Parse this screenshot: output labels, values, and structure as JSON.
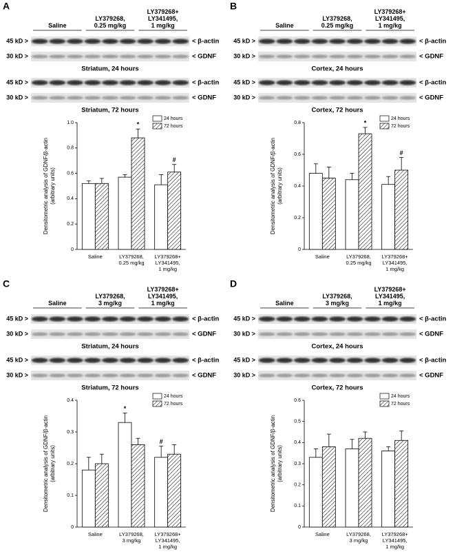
{
  "panels": [
    {
      "label": "A",
      "groups": [
        "Saline",
        "LY379268,\n0.25 mg/kg",
        "LY379268+\nLY341495,\n1 mg/kg"
      ],
      "blots": [
        {
          "caption": "Striatum, 24 hours",
          "rows": [
            {
              "marker": "45 kD >",
              "band": "< β-actin"
            },
            {
              "marker": "30 kD >",
              "band": "< GDNF"
            }
          ]
        },
        {
          "caption": "Striatum, 72 hours",
          "rows": [
            {
              "marker": "45 kD >",
              "band": "< β-actin"
            },
            {
              "marker": "30 kD >",
              "band": "< GDNF"
            }
          ]
        }
      ]
    },
    {
      "label": "B",
      "groups": [
        "Saline",
        "LY379268,\n0.25 mg/kg",
        "LY379268+\nLY341495,\n1 mg/kg"
      ],
      "blots": [
        {
          "caption": "Cortex, 24 hours",
          "rows": [
            {
              "marker": "45 kD >",
              "band": "< β-actin"
            },
            {
              "marker": "30 kD >",
              "band": "< GDNF"
            }
          ]
        },
        {
          "caption": "Cortex, 72 hours",
          "rows": [
            {
              "marker": "45 kD >",
              "band": "< β-actin"
            },
            {
              "marker": "30 kD >",
              "band": "< GDNF"
            }
          ]
        }
      ]
    },
    {
      "label": "C",
      "groups": [
        "Saline",
        "LY379268,\n3 mg/kg",
        "LY379268+\nLY341495,\n1 mg/kg"
      ],
      "blots": [
        {
          "caption": "Striatum, 24 hours",
          "rows": [
            {
              "marker": "45 kD >",
              "band": "< β-actin"
            },
            {
              "marker": "30 kD >",
              "band": "< GDNF"
            }
          ]
        },
        {
          "caption": "Striatum, 72 hours",
          "rows": [
            {
              "marker": "45 kD >",
              "band": "< β-actin"
            },
            {
              "marker": "30 kD >",
              "band": "< GDNF"
            }
          ]
        }
      ]
    },
    {
      "label": "D",
      "groups": [
        "Saline",
        "LY379268,\n3 mg/kg",
        "LY379268+\nLY341495,\n1 mg/kg"
      ],
      "blots": [
        {
          "caption": "Cortex, 24 hours",
          "rows": [
            {
              "marker": "45 kD >",
              "band": "< β-actin"
            },
            {
              "marker": "30 kD >",
              "band": "< GDNF"
            }
          ]
        },
        {
          "caption": "Cortex, 72 hours",
          "rows": [
            {
              "marker": "45 kD >",
              "band": "< β-actin"
            },
            {
              "marker": "30 kD >",
              "band": "< GDNF"
            }
          ]
        }
      ]
    }
  ],
  "chart_data": [
    {
      "type": "bar",
      "ylabel": "Densitometric analysis of GDNF/β-actin\n(arbitrary units)",
      "categories": [
        "Saline",
        "LY379268,\n0.25 mg/kg",
        "LY379268+\nLY341495,\n1 mg/kg"
      ],
      "series": [
        {
          "name": "24 hours",
          "color": "#ffffff",
          "values": [
            0.52,
            0.57,
            0.51
          ],
          "errors": [
            0.02,
            0.02,
            0.08
          ]
        },
        {
          "name": "72 hours",
          "color": "#000000",
          "hatch": true,
          "values": [
            0.52,
            0.88,
            0.61
          ],
          "errors": [
            0.04,
            0.07,
            0.06
          ]
        }
      ],
      "ylim": [
        0,
        1
      ],
      "yticks": [
        0,
        0.2,
        0.4,
        0.6,
        0.8,
        {
          "value": 1,
          "label": "1.0"
        }
      ],
      "annotations": [
        {
          "text": "*",
          "series": 1,
          "category": 1
        },
        {
          "text": "#",
          "series": 1,
          "category": 2
        }
      ]
    },
    {
      "type": "bar",
      "ylabel": "Densitometric analysis of GDNF/β-actin\n(arbitrary units)",
      "categories": [
        "Saline",
        "LY379268,\n0.25 mg/kg",
        "LY379268+\nLY341495,\n1 mg/kg"
      ],
      "series": [
        {
          "name": "24 hours",
          "color": "#ffffff",
          "values": [
            0.48,
            0.44,
            0.41
          ],
          "errors": [
            0.06,
            0.04,
            0.05
          ]
        },
        {
          "name": "72 hours",
          "color": "#000000",
          "hatch": true,
          "values": [
            0.45,
            0.73,
            0.5
          ],
          "errors": [
            0.07,
            0.04,
            0.08
          ]
        }
      ],
      "ylim": [
        0,
        0.8
      ],
      "yticks": [
        0,
        0.2,
        0.4,
        0.6,
        0.8
      ],
      "annotations": [
        {
          "text": "*",
          "series": 1,
          "category": 1
        },
        {
          "text": "#",
          "series": 1,
          "category": 2
        }
      ]
    },
    {
      "type": "bar",
      "ylabel": "Densitometric analysis of GDNF/β-actin\n(arbitrary units)",
      "categories": [
        "Saline",
        "LY379268,\n3 mg/kg",
        "LY379268+\nLY341495,\n1 mg/kg"
      ],
      "series": [
        {
          "name": "24 hours",
          "color": "#ffffff",
          "values": [
            0.18,
            0.33,
            0.22
          ],
          "errors": [
            0.04,
            0.03,
            0.035
          ]
        },
        {
          "name": "72 hours",
          "color": "#000000",
          "hatch": true,
          "values": [
            0.2,
            0.26,
            0.23
          ],
          "errors": [
            0.03,
            0.02,
            0.03
          ]
        }
      ],
      "ylim": [
        0,
        0.4
      ],
      "yticks": [
        0,
        0.1,
        0.2,
        0.3,
        0.4
      ],
      "annotations": [
        {
          "text": "*",
          "series": 0,
          "category": 1
        },
        {
          "text": "#",
          "series": 0,
          "category": 2
        }
      ]
    },
    {
      "type": "bar",
      "ylabel": "Densitometric analysis of GDNF/β-actin\n(arbitrary units)",
      "categories": [
        "Saline",
        "LY379268,\n3 mg/kg",
        "LY379268+\nLY341495,\n1 mg/kg"
      ],
      "series": [
        {
          "name": "24 hours",
          "color": "#ffffff",
          "values": [
            0.33,
            0.37,
            0.36
          ],
          "errors": [
            0.04,
            0.045,
            0.02
          ]
        },
        {
          "name": "72 hours",
          "color": "#000000",
          "hatch": true,
          "values": [
            0.38,
            0.42,
            0.41
          ],
          "errors": [
            0.06,
            0.03,
            0.045
          ]
        }
      ],
      "ylim": [
        0,
        0.6
      ],
      "yticks": [
        0,
        0.1,
        0.2,
        0.3,
        0.4,
        0.5,
        0.6
      ],
      "annotations": []
    }
  ]
}
